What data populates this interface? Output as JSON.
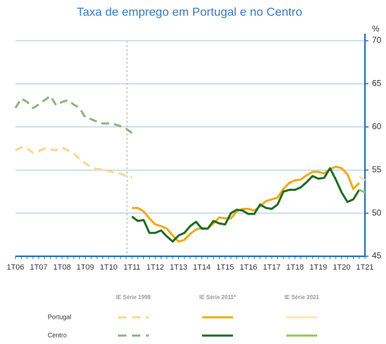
{
  "chart_data": {
    "type": "line",
    "title": "Taxa de emprego em Portugal e no Centro",
    "y_unit": "%",
    "categories": [
      "1T06",
      null,
      null,
      null,
      "1T07",
      null,
      null,
      null,
      "1T08",
      null,
      null,
      null,
      "1T09",
      null,
      null,
      null,
      "1T10",
      null,
      null,
      null,
      "1T11",
      null,
      null,
      null,
      "1T12",
      null,
      null,
      null,
      "1T13",
      null,
      null,
      null,
      "1T14",
      null,
      null,
      null,
      "1T15",
      null,
      null,
      null,
      "1T16",
      null,
      null,
      null,
      "1T17",
      null,
      null,
      null,
      "1T18",
      null,
      null,
      null,
      "1T19",
      null,
      null,
      null,
      "1T20",
      null,
      null,
      null,
      "1T21"
    ],
    "ylim": [
      45,
      70
    ],
    "yticks": [
      45,
      50,
      55,
      60,
      65,
      70
    ],
    "grid": true,
    "y_axis_side": "right",
    "series": [
      {
        "name": "Portugal",
        "group": "IE Série 1998",
        "color": "#fbd68c",
        "line_style": "dashed",
        "values": [
          57.3,
          57.6,
          57.5,
          57.0,
          57.2,
          57.5,
          57.4,
          57.3,
          57.6,
          57.3,
          56.9,
          56.3,
          55.8,
          55.3,
          55.1,
          55.1,
          54.9,
          54.7,
          54.6,
          54.3,
          54.2,
          null,
          null,
          null,
          null,
          null,
          null,
          null,
          null,
          null,
          null,
          null,
          null,
          null,
          null,
          null,
          null,
          null,
          null,
          null,
          null,
          null,
          null,
          null,
          null,
          null,
          null,
          null,
          null,
          null,
          null,
          null,
          null,
          null,
          null,
          null,
          null,
          null,
          null,
          null,
          null
        ]
      },
      {
        "name": "Centro",
        "group": "IE Série 1998",
        "color": "#8db57c",
        "line_style": "dashed",
        "values": [
          62.2,
          63.3,
          62.9,
          62.2,
          62.6,
          63.1,
          63.6,
          62.5,
          62.9,
          63.1,
          62.6,
          62.2,
          61.1,
          60.9,
          60.6,
          60.4,
          60.4,
          60.3,
          60.1,
          59.8,
          59.3,
          null,
          null,
          null,
          null,
          null,
          null,
          null,
          null,
          null,
          null,
          null,
          null,
          null,
          null,
          null,
          null,
          null,
          null,
          null,
          null,
          null,
          null,
          null,
          null,
          null,
          null,
          null,
          null,
          null,
          null,
          null,
          null,
          null,
          null,
          null,
          null,
          null,
          null,
          null,
          null
        ]
      },
      {
        "name": "Portugal",
        "group": "IE Série 2011*",
        "color": "#f3a914",
        "line_style": "solid",
        "values": [
          null,
          null,
          null,
          null,
          null,
          null,
          null,
          null,
          null,
          null,
          null,
          null,
          null,
          null,
          null,
          null,
          null,
          null,
          null,
          null,
          50.6,
          50.6,
          50.2,
          49.4,
          48.7,
          48.5,
          48.2,
          47.4,
          46.7,
          46.9,
          47.6,
          48.1,
          48.3,
          48.2,
          48.8,
          49.5,
          49.4,
          49.4,
          50.2,
          50.5,
          50.5,
          50.3,
          50.8,
          51.4,
          51.6,
          51.8,
          52.8,
          53.5,
          53.8,
          53.9,
          54.4,
          54.8,
          54.8,
          54.6,
          55.1,
          55.4,
          55.2,
          54.5,
          52.8,
          53.5,
          null
        ]
      },
      {
        "name": "Centro",
        "group": "IE Série 2011*",
        "color": "#1f6d22",
        "line_style": "solid",
        "values": [
          null,
          null,
          null,
          null,
          null,
          null,
          null,
          null,
          null,
          null,
          null,
          null,
          null,
          null,
          null,
          null,
          null,
          null,
          null,
          null,
          49.6,
          49.1,
          49.2,
          47.7,
          47.7,
          48.0,
          47.3,
          46.7,
          47.4,
          47.7,
          48.5,
          49.0,
          48.2,
          48.2,
          49.1,
          48.8,
          48.7,
          50.0,
          50.4,
          50.3,
          49.9,
          49.9,
          51.0,
          50.6,
          50.5,
          51.0,
          52.5,
          52.7,
          52.7,
          53.0,
          53.6,
          54.3,
          54.0,
          54.1,
          55.2,
          53.9,
          52.4,
          51.3,
          51.6,
          52.7,
          null
        ]
      },
      {
        "name": "Portugal",
        "group": "IE Série 2021",
        "color": "#fde5b8",
        "line_style": "solid",
        "values": [
          null,
          null,
          null,
          null,
          null,
          null,
          null,
          null,
          null,
          null,
          null,
          null,
          null,
          null,
          null,
          null,
          null,
          null,
          null,
          null,
          null,
          null,
          null,
          null,
          null,
          null,
          null,
          null,
          null,
          null,
          null,
          null,
          null,
          null,
          null,
          null,
          null,
          null,
          null,
          null,
          null,
          null,
          null,
          null,
          null,
          null,
          null,
          null,
          null,
          null,
          null,
          null,
          null,
          null,
          null,
          null,
          null,
          null,
          null,
          54.3,
          53.8
        ]
      },
      {
        "name": "Centro",
        "group": "IE Série 2021",
        "color": "#93c957",
        "line_style": "solid",
        "values": [
          null,
          null,
          null,
          null,
          null,
          null,
          null,
          null,
          null,
          null,
          null,
          null,
          null,
          null,
          null,
          null,
          null,
          null,
          null,
          null,
          null,
          null,
          null,
          null,
          null,
          null,
          null,
          null,
          null,
          null,
          null,
          null,
          null,
          null,
          null,
          null,
          null,
          null,
          null,
          null,
          null,
          null,
          null,
          null,
          null,
          null,
          null,
          null,
          null,
          null,
          null,
          null,
          null,
          null,
          null,
          null,
          null,
          null,
          null,
          52.7,
          52.4
        ]
      }
    ]
  }
}
